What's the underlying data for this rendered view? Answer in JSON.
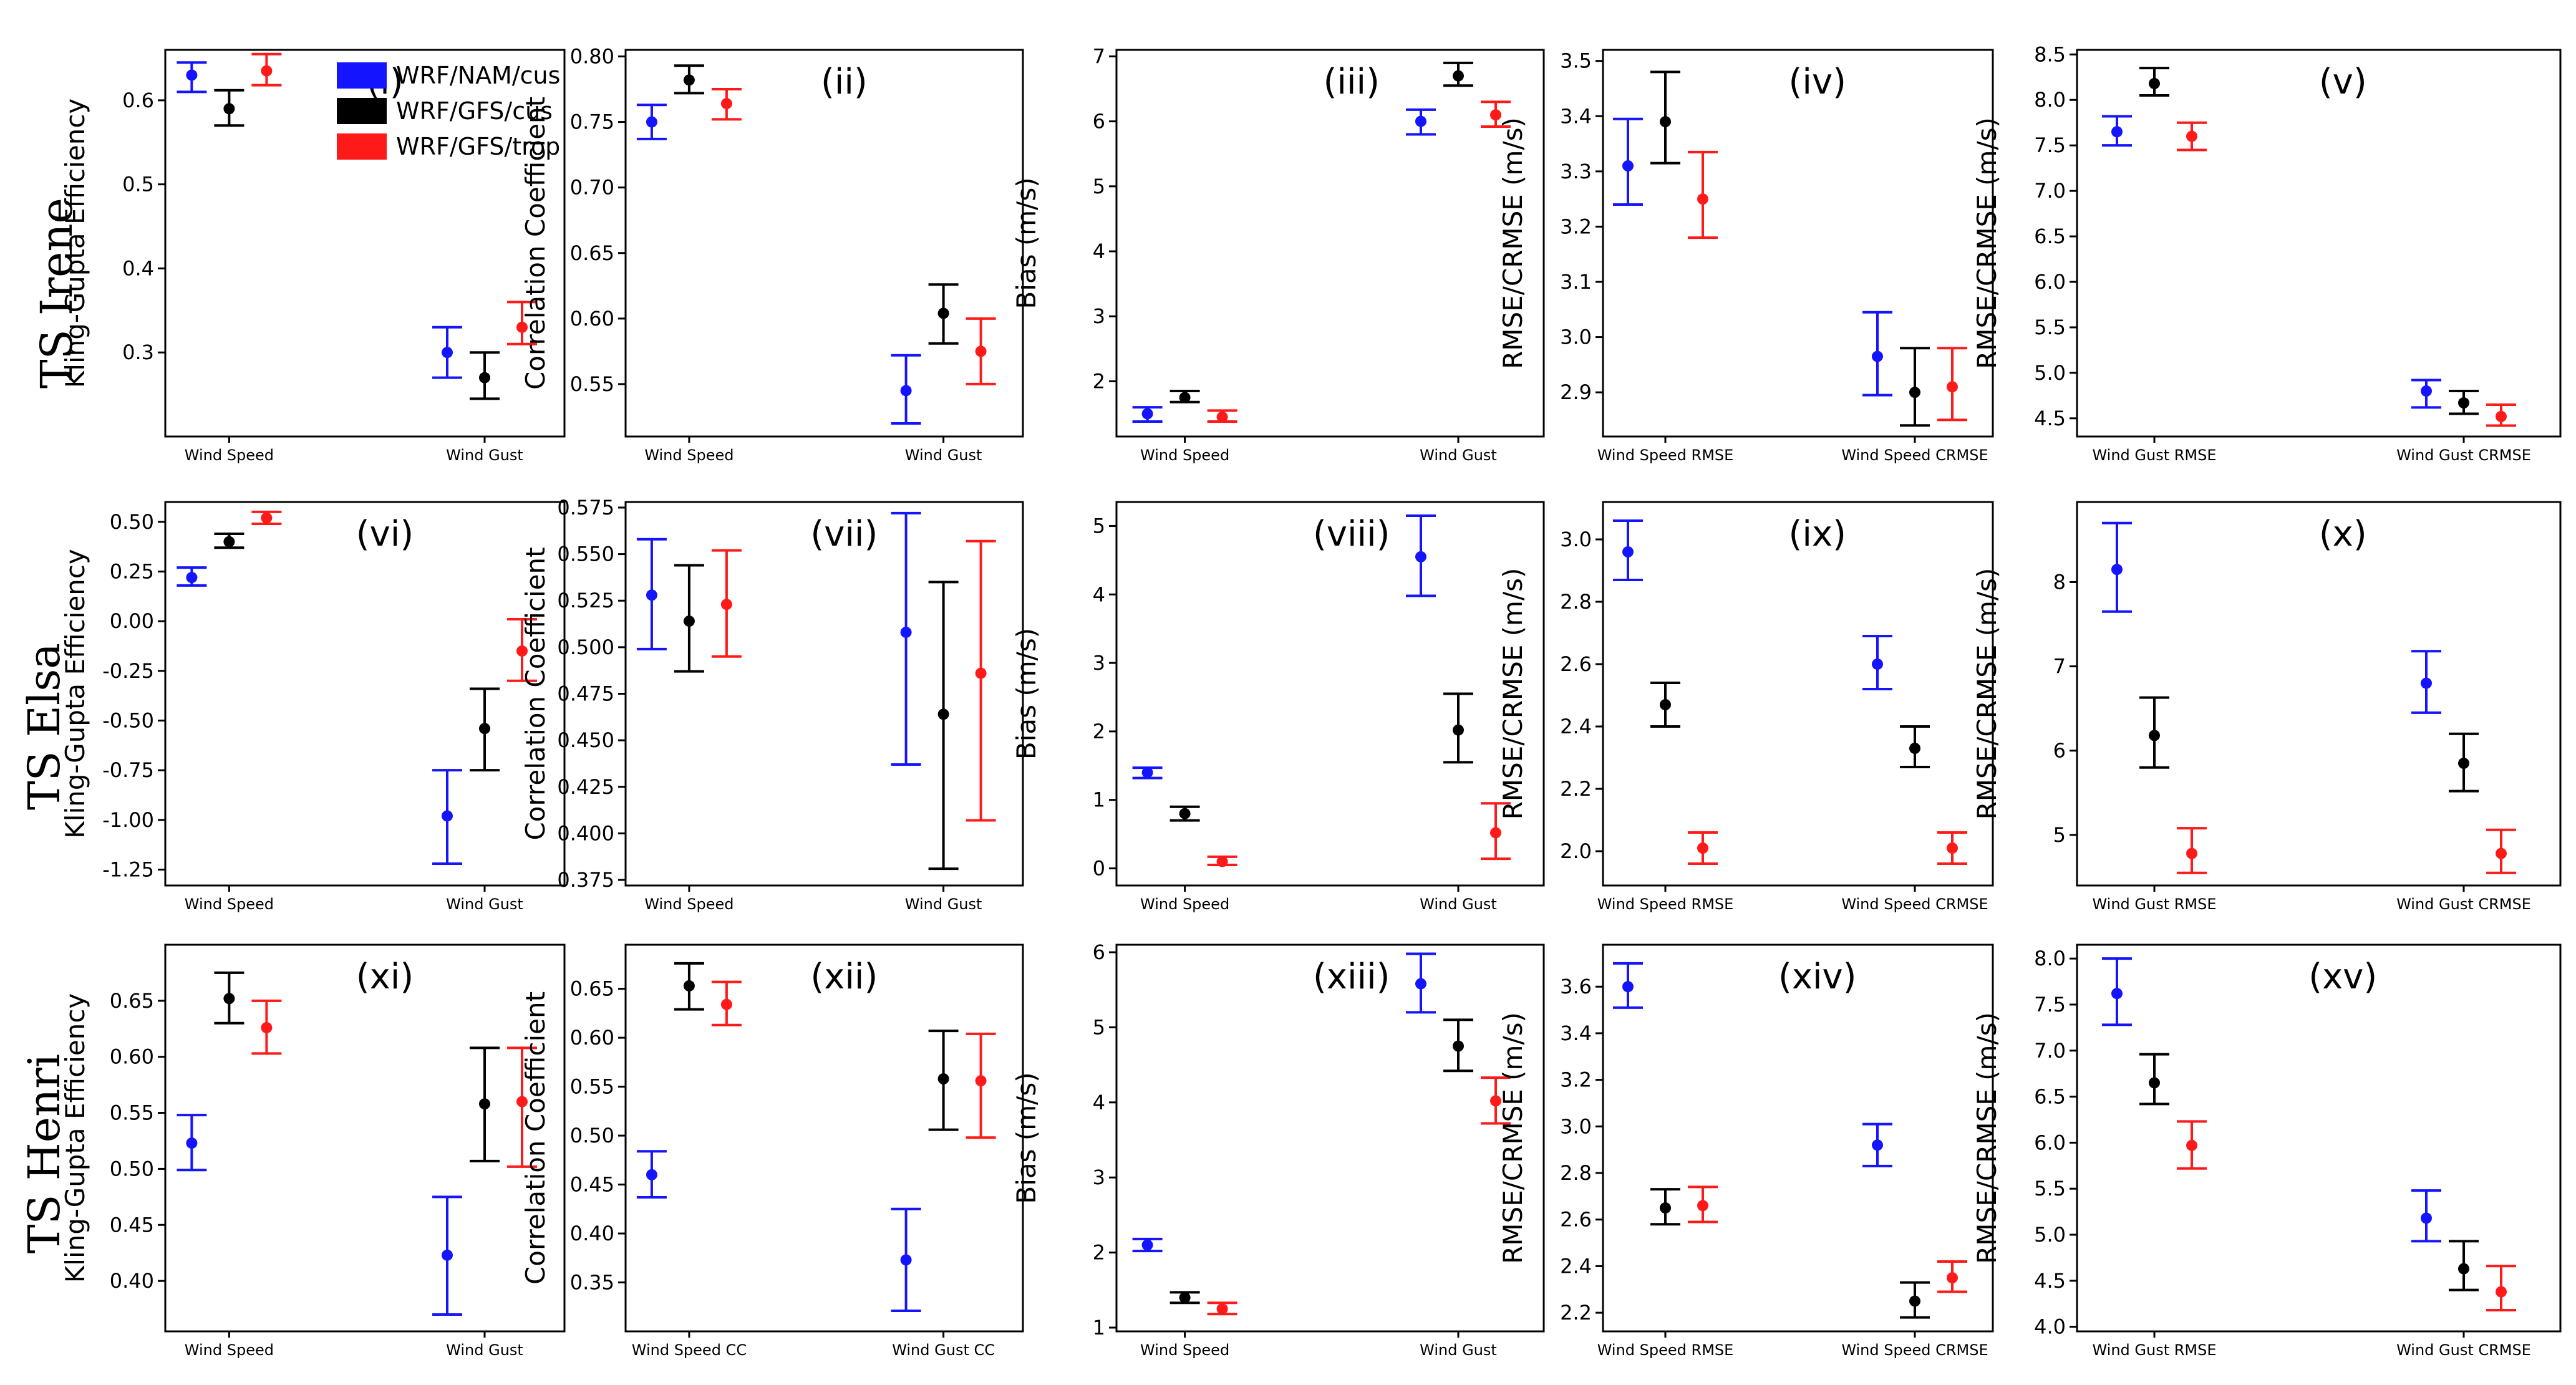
{
  "colors": {
    "blue": "#1414ff",
    "black": "#000000",
    "red": "#ff1a1a"
  },
  "storms": [
    "TS Irene",
    "TS Elsa",
    "TS Henri"
  ],
  "legend": [
    {
      "label": "WRF/NAM/cus",
      "color": "#1414ff"
    },
    {
      "label": "WRF/GFS/cus",
      "color": "#000000"
    },
    {
      "label": "WRF/GFS/trop",
      "color": "#ff1a1a"
    }
  ],
  "chart_data": [
    {
      "type": "scatter",
      "panel": "(i)",
      "storm": "TS Irene",
      "ylabel": "Kling-Gupta Efficiency",
      "ylim": [
        0.2,
        0.66
      ],
      "yticks": [
        0.3,
        0.4,
        0.5,
        0.6
      ],
      "categories": [
        "Wind Speed",
        "Wind Gust"
      ],
      "series": [
        {
          "name": "WRF/NAM/cus",
          "color": "#1414ff",
          "values": [
            0.63,
            0.3
          ],
          "lower": [
            0.61,
            0.27
          ],
          "upper": [
            0.645,
            0.33
          ]
        },
        {
          "name": "WRF/GFS/cus",
          "color": "#000000",
          "values": [
            0.59,
            0.27
          ],
          "lower": [
            0.57,
            0.245
          ],
          "upper": [
            0.612,
            0.3
          ]
        },
        {
          "name": "WRF/GFS/trop",
          "color": "#ff1a1a",
          "values": [
            0.635,
            0.33
          ],
          "lower": [
            0.618,
            0.31
          ],
          "upper": [
            0.655,
            0.36
          ]
        }
      ]
    },
    {
      "type": "scatter",
      "panel": "(ii)",
      "storm": "TS Irene",
      "ylabel": "Correlation Coefficient",
      "ylim": [
        0.51,
        0.805
      ],
      "yticks": [
        0.55,
        0.6,
        0.65,
        0.7,
        0.75,
        0.8
      ],
      "categories": [
        "Wind Speed",
        "Wind Gust"
      ],
      "series": [
        {
          "name": "WRF/NAM/cus",
          "color": "#1414ff",
          "values": [
            0.75,
            0.545
          ],
          "lower": [
            0.737,
            0.52
          ],
          "upper": [
            0.763,
            0.572
          ]
        },
        {
          "name": "WRF/GFS/cus",
          "color": "#000000",
          "values": [
            0.782,
            0.604
          ],
          "lower": [
            0.772,
            0.581
          ],
          "upper": [
            0.793,
            0.626
          ]
        },
        {
          "name": "WRF/GFS/trop",
          "color": "#ff1a1a",
          "values": [
            0.764,
            0.575
          ],
          "lower": [
            0.752,
            0.55
          ],
          "upper": [
            0.775,
            0.6
          ]
        }
      ]
    },
    {
      "type": "scatter",
      "panel": "(iii)",
      "storm": "TS Irene",
      "ylabel": "Bias (m/s)",
      "ylim": [
        1.15,
        7.1
      ],
      "yticks": [
        2,
        3,
        4,
        5,
        6,
        7
      ],
      "categories": [
        "Wind Speed",
        "Wind Gust"
      ],
      "series": [
        {
          "name": "WRF/NAM/cus",
          "color": "#1414ff",
          "values": [
            1.5,
            6.0
          ],
          "lower": [
            1.38,
            5.8
          ],
          "upper": [
            1.6,
            6.18
          ]
        },
        {
          "name": "WRF/GFS/cus",
          "color": "#000000",
          "values": [
            1.75,
            6.7
          ],
          "lower": [
            1.68,
            6.55
          ],
          "upper": [
            1.85,
            6.9
          ]
        },
        {
          "name": "WRF/GFS/trop",
          "color": "#ff1a1a",
          "values": [
            1.45,
            6.1
          ],
          "lower": [
            1.38,
            5.92
          ],
          "upper": [
            1.55,
            6.3
          ]
        }
      ]
    },
    {
      "type": "scatter",
      "panel": "(iv)",
      "storm": "TS Irene",
      "ylabel": "RMSE/CRMSE (m/s)",
      "ylim": [
        2.82,
        3.52
      ],
      "yticks": [
        2.9,
        3.0,
        3.1,
        3.2,
        3.3,
        3.4,
        3.5
      ],
      "categories": [
        "Wind Speed RMSE",
        "Wind Speed CRMSE"
      ],
      "series": [
        {
          "name": "WRF/NAM/cus",
          "color": "#1414ff",
          "values": [
            3.31,
            2.965
          ],
          "lower": [
            3.24,
            2.895
          ],
          "upper": [
            3.395,
            3.045
          ]
        },
        {
          "name": "WRF/GFS/cus",
          "color": "#000000",
          "values": [
            3.39,
            2.9
          ],
          "lower": [
            3.315,
            2.84
          ],
          "upper": [
            3.48,
            2.98
          ]
        },
        {
          "name": "WRF/GFS/trop",
          "color": "#ff1a1a",
          "values": [
            3.25,
            2.91
          ],
          "lower": [
            3.18,
            2.85
          ],
          "upper": [
            3.335,
            2.98
          ]
        }
      ]
    },
    {
      "type": "scatter",
      "panel": "(v)",
      "storm": "TS Irene",
      "ylabel": "RMSE/CRMSE (m/s)",
      "ylim": [
        4.3,
        8.55
      ],
      "yticks": [
        4.5,
        5.0,
        5.5,
        6.0,
        6.5,
        7.0,
        7.5,
        8.0,
        8.5
      ],
      "categories": [
        "Wind Gust RMSE",
        "Wind Gust CRMSE"
      ],
      "series": [
        {
          "name": "WRF/NAM/cus",
          "color": "#1414ff",
          "values": [
            7.65,
            4.8
          ],
          "lower": [
            7.5,
            4.62
          ],
          "upper": [
            7.82,
            4.92
          ]
        },
        {
          "name": "WRF/GFS/cus",
          "color": "#000000",
          "values": [
            8.18,
            4.67
          ],
          "lower": [
            8.05,
            4.55
          ],
          "upper": [
            8.35,
            4.8
          ]
        },
        {
          "name": "WRF/GFS/trop",
          "color": "#ff1a1a",
          "values": [
            7.6,
            4.52
          ],
          "lower": [
            7.45,
            4.42
          ],
          "upper": [
            7.75,
            4.65
          ]
        }
      ]
    },
    {
      "type": "scatter",
      "panel": "(vi)",
      "storm": "TS Elsa",
      "ylabel": "Kling-Gupta Efficiency",
      "ylim": [
        -1.33,
        0.6
      ],
      "yticks": [
        -1.25,
        -1.0,
        -0.75,
        -0.5,
        -0.25,
        0.0,
        0.25,
        0.5
      ],
      "categories": [
        "Wind Speed",
        "Wind Gust"
      ],
      "series": [
        {
          "name": "WRF/NAM/cus",
          "color": "#1414ff",
          "values": [
            0.22,
            -0.98
          ],
          "lower": [
            0.18,
            -1.22
          ],
          "upper": [
            0.27,
            -0.75
          ]
        },
        {
          "name": "WRF/GFS/cus",
          "color": "#000000",
          "values": [
            0.4,
            -0.54
          ],
          "lower": [
            0.37,
            -0.75
          ],
          "upper": [
            0.44,
            -0.34
          ]
        },
        {
          "name": "WRF/GFS/trop",
          "color": "#ff1a1a",
          "values": [
            0.52,
            -0.15
          ],
          "lower": [
            0.49,
            -0.3
          ],
          "upper": [
            0.55,
            0.01
          ]
        }
      ]
    },
    {
      "type": "scatter",
      "panel": "(vii)",
      "storm": "TS Elsa",
      "ylabel": "Correlation Coefficient",
      "ylim": [
        0.372,
        0.578
      ],
      "yticks": [
        0.375,
        0.4,
        0.425,
        0.45,
        0.475,
        0.5,
        0.525,
        0.55,
        0.575
      ],
      "categories": [
        "Wind Speed",
        "Wind Gust"
      ],
      "series": [
        {
          "name": "WRF/NAM/cus",
          "color": "#1414ff",
          "values": [
            0.528,
            0.508
          ],
          "lower": [
            0.499,
            0.437
          ],
          "upper": [
            0.558,
            0.572
          ]
        },
        {
          "name": "WRF/GFS/cus",
          "color": "#000000",
          "values": [
            0.514,
            0.464
          ],
          "lower": [
            0.487,
            0.381
          ],
          "upper": [
            0.544,
            0.535
          ]
        },
        {
          "name": "WRF/GFS/trop",
          "color": "#ff1a1a",
          "values": [
            0.523,
            0.486
          ],
          "lower": [
            0.495,
            0.407
          ],
          "upper": [
            0.552,
            0.557
          ]
        }
      ]
    },
    {
      "type": "scatter",
      "panel": "(viii)",
      "storm": "TS Elsa",
      "ylabel": "Bias (m/s)",
      "ylim": [
        -0.25,
        5.35
      ],
      "yticks": [
        0,
        1,
        2,
        3,
        4,
        5
      ],
      "categories": [
        "Wind Speed",
        "Wind Gust"
      ],
      "series": [
        {
          "name": "WRF/NAM/cus",
          "color": "#1414ff",
          "values": [
            1.4,
            4.55
          ],
          "lower": [
            1.32,
            3.98
          ],
          "upper": [
            1.47,
            5.15
          ]
        },
        {
          "name": "WRF/GFS/cus",
          "color": "#000000",
          "values": [
            0.8,
            2.02
          ],
          "lower": [
            0.7,
            1.55
          ],
          "upper": [
            0.9,
            2.55
          ]
        },
        {
          "name": "WRF/GFS/trop",
          "color": "#ff1a1a",
          "values": [
            0.1,
            0.52
          ],
          "lower": [
            0.05,
            0.14
          ],
          "upper": [
            0.17,
            0.95
          ]
        }
      ]
    },
    {
      "type": "scatter",
      "panel": "(ix)",
      "storm": "TS Elsa",
      "ylabel": "RMSE/CRMSE (m/s)",
      "ylim": [
        1.89,
        3.12
      ],
      "yticks": [
        2.0,
        2.2,
        2.4,
        2.6,
        2.8,
        3.0
      ],
      "categories": [
        "Wind Speed RMSE",
        "Wind Speed CRMSE"
      ],
      "series": [
        {
          "name": "WRF/NAM/cus",
          "color": "#1414ff",
          "values": [
            2.96,
            2.6
          ],
          "lower": [
            2.87,
            2.52
          ],
          "upper": [
            3.06,
            2.69
          ]
        },
        {
          "name": "WRF/GFS/cus",
          "color": "#000000",
          "values": [
            2.47,
            2.33
          ],
          "lower": [
            2.4,
            2.27
          ],
          "upper": [
            2.54,
            2.4
          ]
        },
        {
          "name": "WRF/GFS/trop",
          "color": "#ff1a1a",
          "values": [
            2.01,
            2.01
          ],
          "lower": [
            1.96,
            1.96
          ],
          "upper": [
            2.06,
            2.06
          ]
        }
      ]
    },
    {
      "type": "scatter",
      "panel": "(x)",
      "storm": "TS Elsa",
      "ylabel": "RMSE/CRMSE (m/s)",
      "ylim": [
        4.4,
        8.95
      ],
      "yticks": [
        5,
        6,
        7,
        8
      ],
      "categories": [
        "Wind Gust RMSE",
        "Wind Gust CRMSE"
      ],
      "series": [
        {
          "name": "WRF/NAM/cus",
          "color": "#1414ff",
          "values": [
            8.15,
            6.8
          ],
          "lower": [
            7.65,
            6.45
          ],
          "upper": [
            8.7,
            7.18
          ]
        },
        {
          "name": "WRF/GFS/cus",
          "color": "#000000",
          "values": [
            6.18,
            5.85
          ],
          "lower": [
            5.8,
            5.52
          ],
          "upper": [
            6.63,
            6.2
          ]
        },
        {
          "name": "WRF/GFS/trop",
          "color": "#ff1a1a",
          "values": [
            4.78,
            4.78
          ],
          "lower": [
            4.55,
            4.55
          ],
          "upper": [
            5.08,
            5.06
          ]
        }
      ]
    },
    {
      "type": "scatter",
      "panel": "(xi)",
      "storm": "TS Henri",
      "ylabel": "Kling-Gupta Efficiency",
      "ylim": [
        0.355,
        0.7
      ],
      "yticks": [
        0.4,
        0.45,
        0.5,
        0.55,
        0.6,
        0.65
      ],
      "categories": [
        "Wind Speed",
        "Wind Gust"
      ],
      "series": [
        {
          "name": "WRF/NAM/cus",
          "color": "#1414ff",
          "values": [
            0.523,
            0.423
          ],
          "lower": [
            0.499,
            0.37
          ],
          "upper": [
            0.548,
            0.475
          ]
        },
        {
          "name": "WRF/GFS/cus",
          "color": "#000000",
          "values": [
            0.652,
            0.558
          ],
          "lower": [
            0.63,
            0.507
          ],
          "upper": [
            0.675,
            0.608
          ]
        },
        {
          "name": "WRF/GFS/trop",
          "color": "#ff1a1a",
          "values": [
            0.626,
            0.56
          ],
          "lower": [
            0.603,
            0.502
          ],
          "upper": [
            0.65,
            0.608
          ]
        }
      ]
    },
    {
      "type": "scatter",
      "panel": "(xii)",
      "storm": "TS Henri",
      "ylabel": "Correlation Coefficient",
      "ylim": [
        0.3,
        0.695
      ],
      "yticks": [
        0.35,
        0.4,
        0.45,
        0.5,
        0.55,
        0.6,
        0.65
      ],
      "categories": [
        "Wind Speed CC",
        "Wind Gust CC"
      ],
      "series": [
        {
          "name": "WRF/NAM/cus",
          "color": "#1414ff",
          "values": [
            0.46,
            0.373
          ],
          "lower": [
            0.437,
            0.321
          ],
          "upper": [
            0.484,
            0.425
          ]
        },
        {
          "name": "WRF/GFS/cus",
          "color": "#000000",
          "values": [
            0.653,
            0.558
          ],
          "lower": [
            0.629,
            0.506
          ],
          "upper": [
            0.676,
            0.607
          ]
        },
        {
          "name": "WRF/GFS/trop",
          "color": "#ff1a1a",
          "values": [
            0.634,
            0.556
          ],
          "lower": [
            0.613,
            0.498
          ],
          "upper": [
            0.657,
            0.604
          ]
        }
      ]
    },
    {
      "type": "scatter",
      "panel": "(xiii)",
      "storm": "TS Henri",
      "ylabel": "Bias (m/s)",
      "ylim": [
        0.95,
        6.1
      ],
      "yticks": [
        1,
        2,
        3,
        4,
        5,
        6
      ],
      "categories": [
        "Wind Speed",
        "Wind Gust"
      ],
      "series": [
        {
          "name": "WRF/NAM/cus",
          "color": "#1414ff",
          "values": [
            2.1,
            5.58
          ],
          "lower": [
            2.02,
            5.2
          ],
          "upper": [
            2.18,
            5.98
          ]
        },
        {
          "name": "WRF/GFS/cus",
          "color": "#000000",
          "values": [
            1.4,
            4.75
          ],
          "lower": [
            1.33,
            4.42
          ],
          "upper": [
            1.47,
            5.1
          ]
        },
        {
          "name": "WRF/GFS/trop",
          "color": "#ff1a1a",
          "values": [
            1.25,
            4.02
          ],
          "lower": [
            1.18,
            3.72
          ],
          "upper": [
            1.33,
            4.33
          ]
        }
      ]
    },
    {
      "type": "scatter",
      "panel": "(xiv)",
      "storm": "TS Henri",
      "ylabel": "RMSE/CRMSE (m/s)",
      "ylim": [
        2.12,
        3.78
      ],
      "yticks": [
        2.2,
        2.4,
        2.6,
        2.8,
        3.0,
        3.2,
        3.4,
        3.6
      ],
      "categories": [
        "Wind Speed RMSE",
        "Wind Speed CRMSE"
      ],
      "series": [
        {
          "name": "WRF/NAM/cus",
          "color": "#1414ff",
          "values": [
            3.6,
            2.92
          ],
          "lower": [
            3.51,
            2.83
          ],
          "upper": [
            3.7,
            3.01
          ]
        },
        {
          "name": "WRF/GFS/cus",
          "color": "#000000",
          "values": [
            2.65,
            2.25
          ],
          "lower": [
            2.58,
            2.18
          ],
          "upper": [
            2.73,
            2.33
          ]
        },
        {
          "name": "WRF/GFS/trop",
          "color": "#ff1a1a",
          "values": [
            2.66,
            2.35
          ],
          "lower": [
            2.59,
            2.29
          ],
          "upper": [
            2.74,
            2.42
          ]
        }
      ]
    },
    {
      "type": "scatter",
      "panel": "(xv)",
      "storm": "TS Henri",
      "ylabel": "RMSE/CRMSE (m/s)",
      "ylim": [
        3.95,
        8.15
      ],
      "yticks": [
        4.0,
        4.5,
        5.0,
        5.5,
        6.0,
        6.5,
        7.0,
        7.5,
        8.0
      ],
      "categories": [
        "Wind Gust RMSE",
        "Wind Gust CRMSE"
      ],
      "series": [
        {
          "name": "WRF/NAM/cus",
          "color": "#1414ff",
          "values": [
            7.62,
            5.18
          ],
          "lower": [
            7.28,
            4.93
          ],
          "upper": [
            8.0,
            5.48
          ]
        },
        {
          "name": "WRF/GFS/cus",
          "color": "#000000",
          "values": [
            6.65,
            4.63
          ],
          "lower": [
            6.42,
            4.4
          ],
          "upper": [
            6.96,
            4.93
          ]
        },
        {
          "name": "WRF/GFS/trop",
          "color": "#ff1a1a",
          "values": [
            5.97,
            4.38
          ],
          "lower": [
            5.72,
            4.18
          ],
          "upper": [
            6.23,
            4.66
          ]
        }
      ]
    }
  ]
}
